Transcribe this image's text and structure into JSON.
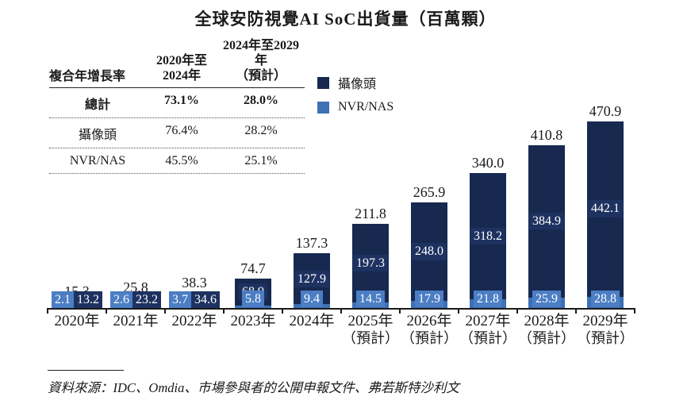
{
  "title": "全球安防視覺AI SoC出貨量（百萬顆）",
  "cagr_table": {
    "col1_header": "複合年增長率",
    "col2_header_line1": "2020年至",
    "col2_header_line2": "2024年",
    "col3_header_line1": "2024年至2029年",
    "col3_header_line2": "（預計）",
    "rows": [
      {
        "label": "總計",
        "p2020_2024": "73.1%",
        "p2024_2029": "28.0%"
      },
      {
        "label": "攝像頭",
        "p2020_2024": "76.4%",
        "p2024_2029": "28.2%"
      },
      {
        "label": "NVR/NAS",
        "p2020_2024": "45.5%",
        "p2024_2029": "25.1%"
      }
    ]
  },
  "legend": [
    {
      "label": "攝像頭",
      "color": "#17294f"
    },
    {
      "label": "NVR/NAS",
      "color": "#3e70b5"
    }
  ],
  "chart_data": {
    "type": "bar",
    "stacked": true,
    "title": "全球安防視覺AI SoC出貨量（百萬顆）",
    "unit": "百萬顆",
    "categories": [
      "2020年",
      "2021年",
      "2022年",
      "2023年",
      "2024年",
      "2025年（預計）",
      "2026年（預計）",
      "2027年（預計）",
      "2028年（預計）",
      "2029年（預計）"
    ],
    "series": [
      {
        "name": "攝像頭",
        "color": "#17294f",
        "label_bg": "#1e3261",
        "values": [
          "13.2",
          "23.2",
          "34.6",
          "68.9",
          "127.9",
          "197.3",
          "248.0",
          "318.2",
          "384.9",
          "442.1"
        ]
      },
      {
        "name": "NVR/NAS",
        "color": "#3e70b5",
        "label_bg": "#4b7ec4",
        "values": [
          "2.1",
          "2.6",
          "3.7",
          "5.8",
          "9.4",
          "14.5",
          "17.9",
          "21.8",
          "25.9",
          "28.8"
        ]
      }
    ],
    "totals": [
      "15.3",
      "25.8",
      "38.3",
      "74.7",
      "137.3",
      "211.8",
      "265.9",
      "340.0",
      "410.8",
      "470.9"
    ],
    "ylim": [
      0,
      500
    ],
    "grid": false,
    "legend_position": "top-left"
  },
  "source_note": "資料來源：IDC、Omdia、市場參與者的公開申報文件、弗若斯特沙利文"
}
